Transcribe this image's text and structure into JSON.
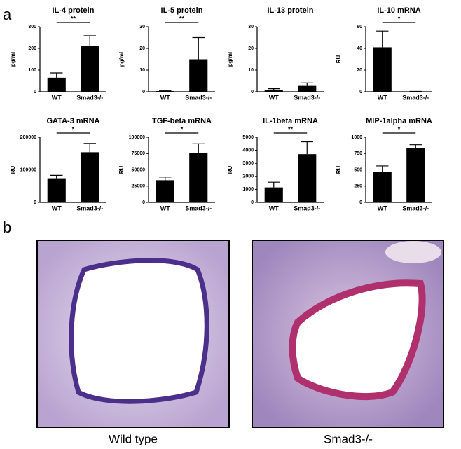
{
  "panel_labels": [
    "a",
    "b"
  ],
  "images": [
    {
      "caption": "Wild type"
    },
    {
      "caption": "Smad3-/-"
    }
  ],
  "chart_data": [
    {
      "type": "bar",
      "title": "IL-4 protein",
      "ylabel": "pg/ml",
      "categories": [
        "WT",
        "Smad3-/-"
      ],
      "values": [
        65,
        213
      ],
      "errors": [
        22,
        45
      ],
      "significance": "**",
      "color": "#000000",
      "ylim": [
        0,
        300
      ],
      "yticks": [
        0,
        100,
        200,
        300
      ]
    },
    {
      "type": "bar",
      "title": "IL-5 protein",
      "ylabel": "pg/ml",
      "categories": [
        "WT",
        "Smad3-/-"
      ],
      "values": [
        0.3,
        15
      ],
      "errors": [
        0.1,
        10
      ],
      "significance": "**",
      "color": "#000000",
      "ylim": [
        0,
        30
      ],
      "yticks": [
        0,
        10,
        20,
        30
      ]
    },
    {
      "type": "bar",
      "title": "IL-13 protein",
      "ylabel": "pg/ml",
      "categories": [
        "WT",
        "Smad3-/-"
      ],
      "values": [
        0.8,
        2.7
      ],
      "errors": [
        0.6,
        1.4
      ],
      "color": "#000000",
      "ylim": [
        0,
        30
      ],
      "yticks": [
        0,
        10,
        20,
        30
      ]
    },
    {
      "type": "bar",
      "title": "IL-10 mRNA",
      "ylabel": "RU",
      "categories": [
        "WT",
        "Smad3-/-"
      ],
      "values": [
        41,
        0.3
      ],
      "errors": [
        15,
        0
      ],
      "significance": "*",
      "color": "#000000",
      "ylim": [
        0,
        60
      ],
      "yticks": [
        0,
        20,
        40,
        60
      ]
    },
    {
      "type": "bar",
      "title": "GATA-3 mRNA",
      "ylabel": "RU",
      "categories": [
        "WT",
        "Smad3-/-"
      ],
      "values": [
        74000,
        154000
      ],
      "errors": [
        9000,
        27000
      ],
      "significance": "*",
      "color": "#000000",
      "ylim": [
        0,
        200000
      ],
      "yticks": [
        0,
        100000,
        200000
      ]
    },
    {
      "type": "bar",
      "title": "TGF-beta mRNA",
      "ylabel": "RU",
      "categories": [
        "WT",
        "Smad3-/-"
      ],
      "values": [
        34000,
        76000
      ],
      "errors": [
        5000,
        14000
      ],
      "significance": "*",
      "color": "#000000",
      "ylim": [
        0,
        100000
      ],
      "yticks": [
        0,
        25000,
        50000,
        75000,
        100000
      ]
    },
    {
      "type": "bar",
      "title": "IL-1beta mRNA",
      "ylabel": "RU",
      "categories": [
        "WT",
        "Smad3-/-"
      ],
      "values": [
        1150,
        3700
      ],
      "errors": [
        400,
        950
      ],
      "significance": "**",
      "color": "#000000",
      "ylim": [
        0,
        5000
      ],
      "yticks": [
        0,
        1000,
        2000,
        3000,
        4000,
        5000
      ]
    },
    {
      "type": "bar",
      "title": "MIP-1alpha mRNA",
      "ylabel": "RU",
      "categories": [
        "WT",
        "Smad3-/-"
      ],
      "values": [
        470,
        835
      ],
      "errors": [
        90,
        50
      ],
      "significance": "*",
      "color": "#000000",
      "ylim": [
        0,
        1000
      ],
      "yticks": [
        0,
        250,
        500,
        750,
        1000
      ]
    }
  ]
}
